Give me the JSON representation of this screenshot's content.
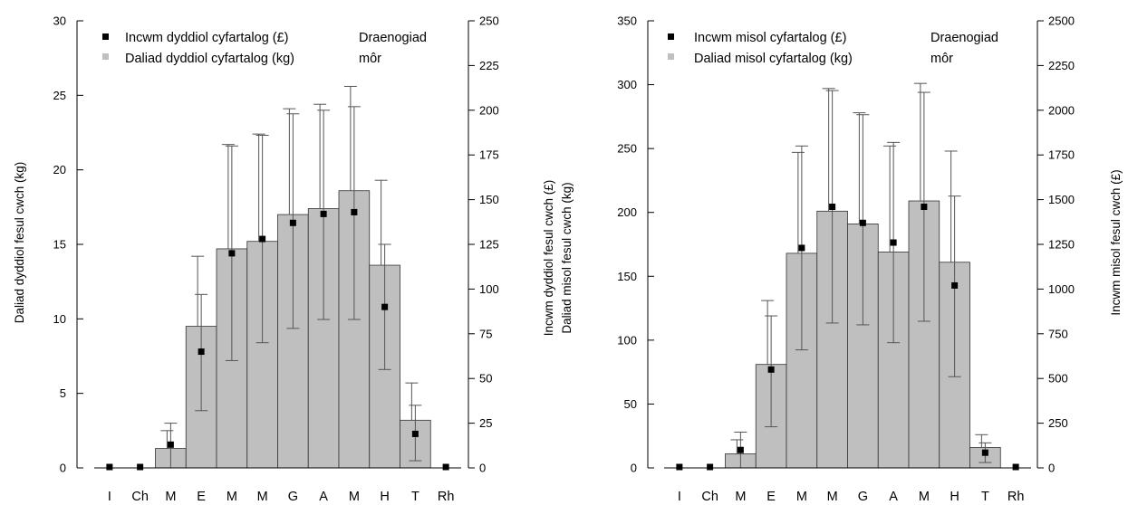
{
  "chart_data": [
    {
      "type": "bar",
      "categories": [
        "I",
        "Ch",
        "M",
        "E",
        "M",
        "M",
        "G",
        "A",
        "M",
        "H",
        "T",
        "Rh"
      ],
      "species_label": [
        "Draenogiad",
        "môr"
      ],
      "left_axis": {
        "label": "Daliad dyddiol fesul cwch (kg)",
        "ylim": [
          0,
          30
        ],
        "ticks": [
          0,
          5,
          10,
          15,
          20,
          25,
          30
        ]
      },
      "right_axis": {
        "label": [
          "Incwm dyddiol fesul cwch (£)",
          "Daliad misol fesul cwch (kg)"
        ],
        "ylim": [
          0,
          250
        ],
        "ticks": [
          0,
          25,
          50,
          75,
          100,
          125,
          150,
          175,
          200,
          225,
          250
        ]
      },
      "series": [
        {
          "name": "Incwm dyddiol cyfartalog (£)",
          "kind": "points",
          "axis": "right",
          "color": "#000000",
          "values": [
            0.5,
            0.5,
            13,
            65,
            120,
            128,
            137,
            142,
            143,
            90,
            19,
            0.5
          ],
          "err_low": [
            0,
            0,
            0,
            32,
            60,
            70,
            78,
            83,
            83,
            55,
            4,
            0
          ],
          "err_high": [
            0,
            0,
            25,
            97,
            180,
            186,
            198,
            200,
            202,
            125,
            35,
            0
          ]
        },
        {
          "name": "Daliad dyddiol cyfartalog (kg)",
          "kind": "bars",
          "axis": "left",
          "color": "#bfbfbf",
          "values": [
            0,
            0,
            1.3,
            9.5,
            14.7,
            15.2,
            17.0,
            17.4,
            18.6,
            13.6,
            3.2,
            0
          ],
          "err_high": [
            0,
            0,
            2.5,
            14.2,
            21.7,
            22.4,
            24.1,
            24.4,
            25.6,
            19.3,
            5.7,
            0
          ]
        }
      ]
    },
    {
      "type": "bar",
      "categories": [
        "I",
        "Ch",
        "M",
        "E",
        "M",
        "M",
        "G",
        "A",
        "M",
        "H",
        "T",
        "Rh"
      ],
      "species_label": [
        "Draenogiad",
        "môr"
      ],
      "left_axis": {
        "label": "",
        "ylim": [
          0,
          350
        ],
        "ticks": [
          0,
          50,
          100,
          150,
          200,
          250,
          300,
          350
        ]
      },
      "right_axis": {
        "label": "Incwm misol fesul cwch (£)",
        "ylim": [
          0,
          2500
        ],
        "ticks": [
          0,
          250,
          500,
          750,
          1000,
          1250,
          1500,
          1750,
          2000,
          2250,
          2500
        ]
      },
      "series": [
        {
          "name": "Incwm misol cyfartalog (£)",
          "kind": "points",
          "axis": "right",
          "color": "#000000",
          "values": [
            5,
            5,
            100,
            550,
            1230,
            1460,
            1370,
            1260,
            1460,
            1020,
            85,
            5
          ],
          "err_low": [
            0,
            0,
            0,
            230,
            660,
            810,
            800,
            700,
            820,
            510,
            30,
            0
          ],
          "err_high": [
            0,
            0,
            200,
            850,
            1800,
            2110,
            1975,
            1820,
            2100,
            1520,
            140,
            0
          ]
        },
        {
          "name": "Daliad misol cyfartalog (kg)",
          "kind": "bars",
          "axis": "left",
          "color": "#bfbfbf",
          "values": [
            0,
            0,
            11,
            81,
            168,
            201,
            191,
            169,
            209,
            161,
            16,
            0
          ],
          "err_high": [
            0,
            0,
            22,
            131,
            247,
            297,
            278,
            252,
            301,
            248,
            26,
            0
          ]
        }
      ]
    }
  ]
}
